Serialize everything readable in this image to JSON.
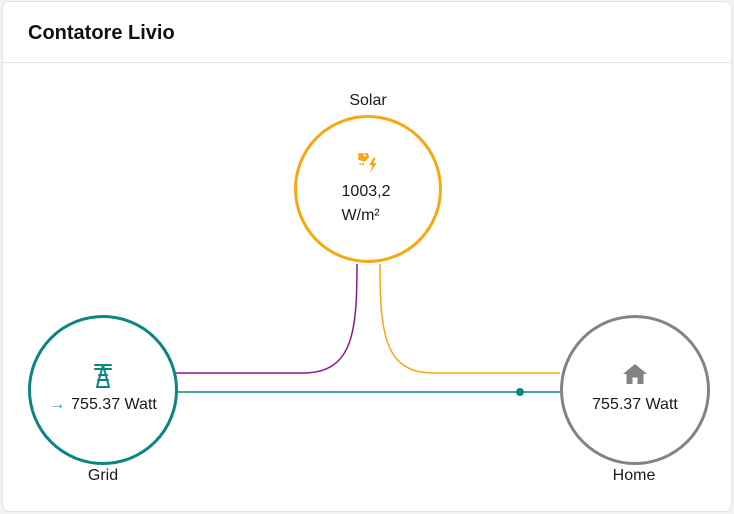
{
  "card": {
    "title": "Contatore Livio"
  },
  "solar": {
    "label": "Solar",
    "value": "1003,2",
    "unit": "W/m²",
    "icon": "solar-power-icon",
    "color": "#f6a812"
  },
  "grid": {
    "label": "Grid",
    "value": "755.37 Watt",
    "direction": "→",
    "icon": "transmission-tower-icon",
    "color": "#0b857f"
  },
  "home": {
    "label": "Home",
    "value": "755.37 Watt",
    "icon": "home-icon",
    "color": "#838383"
  },
  "flows": {
    "solar_to_grid_color": "#8b1a8b",
    "solar_to_home_color": "#f6a812",
    "grid_to_home_color": "#0b857f"
  }
}
